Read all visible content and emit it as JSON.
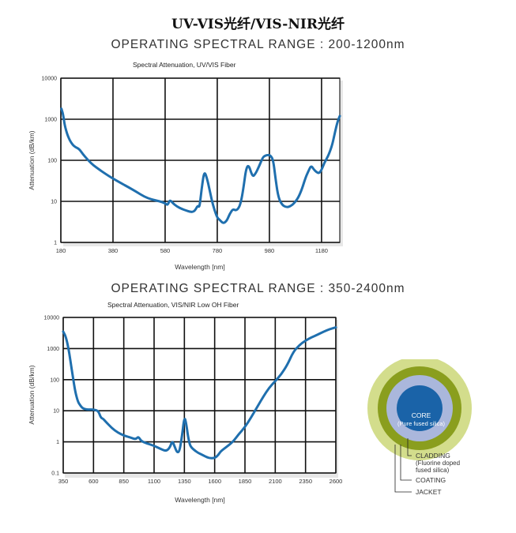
{
  "header": {
    "title": "UV-VIS光纤/VIS-NIR光纤"
  },
  "chart_data": [
    {
      "type": "line",
      "range_title": "OPERATING SPECTRAL RANGE : 200-1200nm",
      "title": "Spectral Attenuation, UV/VIS Fiber",
      "xlabel": "Wavelength [nm]",
      "ylabel": "Attenuation (dB/km)",
      "xlim": [
        180,
        1250
      ],
      "ylim": [
        1,
        10000
      ],
      "yscale": "log",
      "grid": true,
      "xticks": [
        180,
        380,
        580,
        780,
        980,
        1180
      ],
      "xtick_labels": [
        "180",
        "380",
        "580",
        "780",
        "980",
        "1180"
      ],
      "yticks": [
        1,
        10,
        100,
        1000,
        10000
      ],
      "ytick_labels": [
        "1",
        "10",
        "100",
        "1000",
        "10000"
      ],
      "color": "#1f6fae",
      "series": [
        {
          "x": [
            182,
            188,
            195,
            205,
            215,
            225,
            235,
            250,
            265,
            285,
            305,
            330,
            355,
            380,
            410,
            440,
            470,
            500,
            530,
            560,
            580,
            590,
            598,
            610,
            625,
            645,
            660,
            675,
            685,
            695,
            705,
            712,
            720,
            730,
            740,
            750,
            760,
            770,
            780,
            790,
            800,
            808,
            818,
            828,
            840,
            850,
            860,
            870,
            880,
            890,
            900,
            915,
            925,
            940,
            955,
            965,
            975,
            985,
            995,
            1005,
            1015,
            1030,
            1045,
            1060,
            1075,
            1090,
            1105,
            1120,
            1130,
            1140,
            1150,
            1160,
            1170,
            1180,
            1190,
            1200,
            1210,
            1222,
            1232,
            1242,
            1250
          ],
          "y": [
            1800,
            1400,
            700,
            420,
            300,
            240,
            210,
            190,
            140,
            100,
            75,
            58,
            45,
            36,
            28,
            22,
            17,
            13,
            11,
            10,
            9,
            8,
            11,
            9,
            7.5,
            6.5,
            6,
            5.6,
            5.5,
            6,
            8,
            7,
            20,
            55,
            38,
            20,
            10,
            6,
            4,
            3.5,
            3,
            3,
            3.5,
            5,
            6.5,
            6,
            6.5,
            9,
            20,
            60,
            80,
            40,
            45,
            70,
            120,
            130,
            135,
            130,
            100,
            30,
            12,
            8,
            7.2,
            7.5,
            9,
            12,
            20,
            40,
            55,
            75,
            60,
            52,
            48,
            58,
            85,
            110,
            150,
            250,
            500,
            900,
            1200
          ]
        }
      ]
    },
    {
      "type": "line",
      "range_title": "OPERATING SPECTRAL RANGE : 350-2400nm",
      "title": "Spectral Attenuation, VIS/NIR Low  OH  Fiber",
      "xlabel": "Wavelength [nm]",
      "ylabel": "Attenuation (dB/km)",
      "xlim": [
        350,
        2600
      ],
      "ylim": [
        0.1,
        10000
      ],
      "yscale": "log",
      "grid": true,
      "xticks": [
        350,
        600,
        850,
        1100,
        1350,
        1600,
        1850,
        2100,
        2350,
        2600
      ],
      "xtick_labels": [
        "350",
        "600",
        "850",
        "1100",
        "1350",
        "1600",
        "1850",
        "2100",
        "2350",
        "2600"
      ],
      "yticks": [
        0.1,
        1,
        10,
        100,
        1000,
        10000
      ],
      "ytick_labels": [
        "0.1",
        "1",
        "10",
        "100",
        "1000",
        "10000"
      ],
      "color": "#1f6fae",
      "series": [
        {
          "x": [
            350,
            370,
            390,
            410,
            430,
            450,
            470,
            490,
            510,
            540,
            570,
            600,
            640,
            660,
            680,
            700,
            750,
            800,
            850,
            900,
            950,
            970,
            990,
            1020,
            1100,
            1150,
            1200,
            1230,
            1250,
            1270,
            1290,
            1310,
            1330,
            1350,
            1365,
            1380,
            1395,
            1410,
            1430,
            1460,
            1500,
            1550,
            1600,
            1630,
            1650,
            1700,
            1750,
            1800,
            1850,
            1900,
            1950,
            2000,
            2050,
            2100,
            2150,
            2200,
            2250,
            2300,
            2350,
            2400,
            2450,
            2500,
            2550,
            2600
          ],
          "y": [
            3500,
            2500,
            1200,
            400,
            120,
            40,
            20,
            15,
            12,
            11,
            11,
            11,
            10,
            6,
            5.5,
            4.5,
            2.8,
            2,
            1.6,
            1.4,
            1.2,
            1.5,
            1.1,
            0.95,
            0.75,
            0.6,
            0.5,
            0.65,
            1.1,
            0.7,
            0.45,
            0.5,
            1.5,
            6.5,
            4,
            1.5,
            0.8,
            0.65,
            0.55,
            0.45,
            0.38,
            0.3,
            0.3,
            0.38,
            0.5,
            0.7,
            1,
            1.8,
            3,
            6,
            13,
            28,
            55,
            90,
            150,
            300,
            800,
            1300,
            1800,
            2300,
            2800,
            3500,
            4200,
            4800
          ]
        }
      ]
    }
  ],
  "fiber_diagram": {
    "core_label": "CORE",
    "core_sub": "(Pure fused silica)",
    "cladding_label": "CLADDING",
    "cladding_sub_1": "(Fluorine doped",
    "cladding_sub_2": "fused silica)",
    "coating_label": "COATING",
    "jacket_label": "JACKET",
    "colors": {
      "core": "#1a63a8",
      "cladding": "#aab7dc",
      "coating": "#8a9e1e",
      "jacket": "#d3dd8c"
    }
  }
}
